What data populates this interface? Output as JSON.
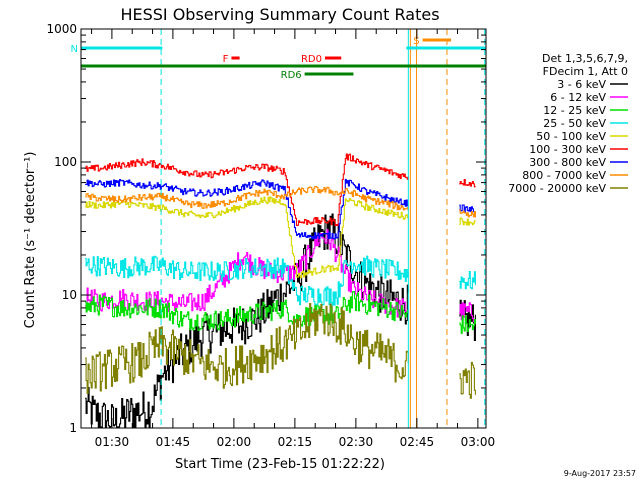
{
  "chart_data": {
    "type": "line",
    "title": "HESSI Observing Summary Count Rates",
    "xlabel": "Start Time (23-Feb-15 01:22:22)",
    "ylabel": "Count Rate (s⁻¹ detector⁻¹)",
    "yscale": "log",
    "ylim": [
      1,
      1000
    ],
    "xlim_minutes": [
      0,
      99.6
    ],
    "x_tick_labels": [
      "01:30",
      "01:45",
      "02:00",
      "02:15",
      "02:30",
      "02:45",
      "03:00"
    ],
    "x_tick_minutes": [
      7.6,
      22.6,
      37.6,
      52.6,
      67.6,
      82.6,
      97.6
    ],
    "y_tick_labels": [
      "1",
      "10",
      "100",
      "1000"
    ],
    "y_tick_values": [
      1,
      10,
      100,
      1000
    ],
    "legend": {
      "placement": "right",
      "header": [
        "Det 1,3,5,6,7,9,",
        "FDecim 1, Att 0"
      ],
      "entries": [
        {
          "label": "3 - 6 keV",
          "color": "#000000"
        },
        {
          "label": "6 - 12 keV",
          "color": "#ff00ff"
        },
        {
          "label": "12 - 25 keV",
          "color": "#00dd00"
        },
        {
          "label": "25 - 50 keV",
          "color": "#00e5e5"
        },
        {
          "label": "50 - 100 keV",
          "color": "#d8d800"
        },
        {
          "label": "100 - 300 keV",
          "color": "#ff0000"
        },
        {
          "label": "300 - 800 keV",
          "color": "#0000ff"
        },
        {
          "label": "800 - 7000 keV",
          "color": "#ff8c00"
        },
        {
          "label": "7000 - 20000 keV",
          "color": "#808000"
        }
      ]
    },
    "gaps_minutes": [
      [
        80.5,
        93.0
      ]
    ],
    "series": [
      {
        "name": "3 - 6 keV",
        "color": "#000000",
        "points": [
          [
            1,
            1.5
          ],
          [
            3,
            1.3
          ],
          [
            5,
            1.2
          ],
          [
            8,
            1.1
          ],
          [
            12,
            1.3
          ],
          [
            17,
            1.4
          ],
          [
            20,
            2.5
          ],
          [
            24,
            3.5
          ],
          [
            30,
            5
          ],
          [
            35,
            5.5
          ],
          [
            40,
            6
          ],
          [
            44,
            7
          ],
          [
            46,
            8
          ],
          [
            48,
            9.5
          ],
          [
            50,
            10.5
          ],
          [
            53,
            13
          ],
          [
            55,
            17
          ],
          [
            57,
            22
          ],
          [
            59,
            28
          ],
          [
            61,
            32
          ],
          [
            63,
            26
          ],
          [
            65,
            20
          ],
          [
            67,
            16
          ],
          [
            69,
            13
          ],
          [
            72,
            11
          ],
          [
            75,
            9.5
          ],
          [
            78,
            9
          ],
          [
            80,
            8.5
          ],
          [
            93.5,
            6.5
          ],
          [
            97,
            6.3
          ]
        ]
      },
      {
        "name": "6 - 12 keV",
        "color": "#ff00ff",
        "points": [
          [
            1,
            9.5
          ],
          [
            5,
            9
          ],
          [
            10,
            9.5
          ],
          [
            15,
            9
          ],
          [
            20,
            9
          ],
          [
            25,
            8.5
          ],
          [
            30,
            9
          ],
          [
            35,
            13
          ],
          [
            38,
            17
          ],
          [
            40,
            20
          ],
          [
            42,
            17
          ],
          [
            46,
            15
          ],
          [
            50,
            14.5
          ],
          [
            53,
            15
          ],
          [
            55,
            18
          ],
          [
            57,
            23
          ],
          [
            59,
            28
          ],
          [
            61,
            26
          ],
          [
            63,
            20
          ],
          [
            65,
            14
          ],
          [
            67,
            11
          ],
          [
            69,
            10
          ],
          [
            72,
            9
          ],
          [
            75,
            8.5
          ],
          [
            78,
            8
          ],
          [
            80,
            8
          ],
          [
            93.5,
            7.5
          ],
          [
            97,
            7.3
          ]
        ]
      },
      {
        "name": "12 - 25 keV",
        "color": "#00dd00",
        "points": [
          [
            1,
            8
          ],
          [
            5,
            8.5
          ],
          [
            10,
            8
          ],
          [
            15,
            8
          ],
          [
            20,
            8
          ],
          [
            25,
            6.5
          ],
          [
            30,
            6.5
          ],
          [
            35,
            6.5
          ],
          [
            40,
            7
          ],
          [
            45,
            7.5
          ],
          [
            50,
            8
          ],
          [
            53,
            6.5
          ],
          [
            55,
            7
          ],
          [
            57,
            7
          ],
          [
            59,
            7
          ],
          [
            61,
            7
          ],
          [
            63,
            7
          ],
          [
            65,
            8.5
          ],
          [
            67,
            9
          ],
          [
            70,
            8.5
          ],
          [
            75,
            8
          ],
          [
            78,
            7.5
          ],
          [
            80,
            7
          ],
          [
            93.5,
            6
          ],
          [
            97,
            5.8
          ]
        ]
      },
      {
        "name": "25 - 50 keV",
        "color": "#00e5e5",
        "points": [
          [
            1,
            17
          ],
          [
            5,
            16.5
          ],
          [
            10,
            16
          ],
          [
            15,
            16.5
          ],
          [
            20,
            16.5
          ],
          [
            25,
            15
          ],
          [
            30,
            15
          ],
          [
            35,
            15
          ],
          [
            40,
            16
          ],
          [
            45,
            16
          ],
          [
            50,
            16
          ],
          [
            53,
            10
          ],
          [
            55,
            10
          ],
          [
            57,
            10
          ],
          [
            59,
            10
          ],
          [
            61,
            10
          ],
          [
            63,
            10
          ],
          [
            65,
            17
          ],
          [
            67,
            17.5
          ],
          [
            70,
            16.5
          ],
          [
            75,
            15.5
          ],
          [
            78,
            15
          ],
          [
            80,
            14.5
          ],
          [
            93.5,
            13
          ],
          [
            97,
            12.5
          ]
        ]
      },
      {
        "name": "50 - 100 keV",
        "color": "#d8d800",
        "points": [
          [
            1,
            48
          ],
          [
            5,
            47
          ],
          [
            10,
            49
          ],
          [
            15,
            47
          ],
          [
            20,
            45
          ],
          [
            25,
            41
          ],
          [
            30,
            39
          ],
          [
            35,
            42
          ],
          [
            40,
            47
          ],
          [
            45,
            52
          ],
          [
            50,
            50
          ],
          [
            53,
            14
          ],
          [
            57,
            15
          ],
          [
            61,
            16
          ],
          [
            63,
            15
          ],
          [
            65,
            52
          ],
          [
            67,
            50
          ],
          [
            70,
            46
          ],
          [
            75,
            42
          ],
          [
            78,
            40
          ],
          [
            80,
            39
          ],
          [
            93.5,
            36
          ],
          [
            97,
            35
          ]
        ]
      },
      {
        "name": "100 - 300 keV",
        "color": "#ff0000",
        "points": [
          [
            1,
            88
          ],
          [
            5,
            90
          ],
          [
            10,
            95
          ],
          [
            15,
            100
          ],
          [
            20,
            94
          ],
          [
            25,
            85
          ],
          [
            30,
            79
          ],
          [
            35,
            83
          ],
          [
            40,
            90
          ],
          [
            45,
            92
          ],
          [
            50,
            85
          ],
          [
            53,
            35
          ],
          [
            57,
            36
          ],
          [
            61,
            36
          ],
          [
            63,
            35
          ],
          [
            65,
            110
          ],
          [
            67,
            106
          ],
          [
            70,
            96
          ],
          [
            75,
            86
          ],
          [
            78,
            80
          ],
          [
            80,
            78
          ],
          [
            93.5,
            71
          ],
          [
            97,
            68
          ]
        ]
      },
      {
        "name": "300 - 800 keV",
        "color": "#0000ff",
        "points": [
          [
            1,
            70
          ],
          [
            5,
            68
          ],
          [
            10,
            70
          ],
          [
            15,
            67
          ],
          [
            20,
            66
          ],
          [
            25,
            60
          ],
          [
            30,
            58
          ],
          [
            35,
            60
          ],
          [
            40,
            65
          ],
          [
            45,
            70
          ],
          [
            50,
            62
          ],
          [
            53,
            28
          ],
          [
            57,
            28
          ],
          [
            61,
            28
          ],
          [
            63,
            28
          ],
          [
            65,
            70
          ],
          [
            67,
            68
          ],
          [
            70,
            60
          ],
          [
            75,
            54
          ],
          [
            78,
            50
          ],
          [
            80,
            49
          ],
          [
            93.5,
            45
          ],
          [
            97,
            43
          ]
        ]
      },
      {
        "name": "800 - 7000 keV",
        "color": "#ff8c00",
        "points": [
          [
            1,
            55
          ],
          [
            5,
            53
          ],
          [
            10,
            52
          ],
          [
            15,
            54
          ],
          [
            20,
            55
          ],
          [
            25,
            49
          ],
          [
            30,
            47
          ],
          [
            35,
            49
          ],
          [
            40,
            55
          ],
          [
            45,
            60
          ],
          [
            50,
            55
          ],
          [
            53,
            60
          ],
          [
            57,
            62
          ],
          [
            61,
            61
          ],
          [
            63,
            58
          ],
          [
            65,
            60
          ],
          [
            67,
            58
          ],
          [
            70,
            53
          ],
          [
            75,
            49
          ],
          [
            78,
            46
          ],
          [
            80,
            45
          ],
          [
            93.5,
            42
          ],
          [
            97,
            40
          ]
        ]
      },
      {
        "name": "7000 - 20000 keV",
        "color": "#808000",
        "points": [
          [
            1,
            2.5
          ],
          [
            5,
            2.7
          ],
          [
            10,
            3
          ],
          [
            15,
            3.2
          ],
          [
            17,
            3.8
          ],
          [
            20,
            4.2
          ],
          [
            25,
            3.5
          ],
          [
            30,
            3
          ],
          [
            35,
            2.8
          ],
          [
            40,
            3.1
          ],
          [
            45,
            3.6
          ],
          [
            50,
            4.3
          ],
          [
            53,
            4.8
          ],
          [
            55,
            5.5
          ],
          [
            57,
            6.5
          ],
          [
            59,
            7
          ],
          [
            61,
            6.6
          ],
          [
            63,
            6
          ],
          [
            65,
            5.5
          ],
          [
            67,
            4.5
          ],
          [
            70,
            4
          ],
          [
            75,
            3.5
          ],
          [
            78,
            3
          ],
          [
            80,
            2.8
          ],
          [
            93.5,
            2.4
          ],
          [
            97,
            2.3
          ]
        ]
      }
    ],
    "flag_bars": [
      {
        "label": "N",
        "color": "#00e5e5",
        "x_start": 0,
        "x_end": 20,
        "level": 1
      },
      {
        "label": "",
        "color": "#00e5e5",
        "x_start": 80,
        "x_end": 99.6,
        "level": 1
      },
      {
        "label": "S",
        "color": "#ff8c00",
        "x_start": 84,
        "x_end": 91,
        "level": 0
      },
      {
        "label": "F",
        "color": "#ff0000",
        "x_start": 37,
        "x_end": 39,
        "level": 2
      },
      {
        "label": "RD0",
        "color": "#ff0000",
        "x_start": 60,
        "x_end": 64,
        "level": 2
      },
      {
        "label": "",
        "color": "#008000",
        "x_start": 0,
        "x_end": 99.6,
        "level": 3
      },
      {
        "label": "RD6",
        "color": "#008000",
        "x_start": 55,
        "x_end": 67,
        "level": 4
      }
    ],
    "markers": [
      {
        "x": 0,
        "color": "#00e5e5",
        "style": "solid"
      },
      {
        "x": 19.7,
        "color": "#00e5e5",
        "style": "dashed"
      },
      {
        "x": 80.5,
        "color": "#00e5e5",
        "style": "solid"
      },
      {
        "x": 81,
        "color": "#ff8c00",
        "style": "solid"
      },
      {
        "x": 82.5,
        "color": "#ff8c00",
        "style": "solid"
      },
      {
        "x": 90,
        "color": "#ff8c00",
        "style": "dashed"
      },
      {
        "x": 99.3,
        "color": "#00e5e5",
        "style": "dashed"
      }
    ]
  },
  "footer": {
    "timestamp": "9-Aug-2017 23:57"
  }
}
